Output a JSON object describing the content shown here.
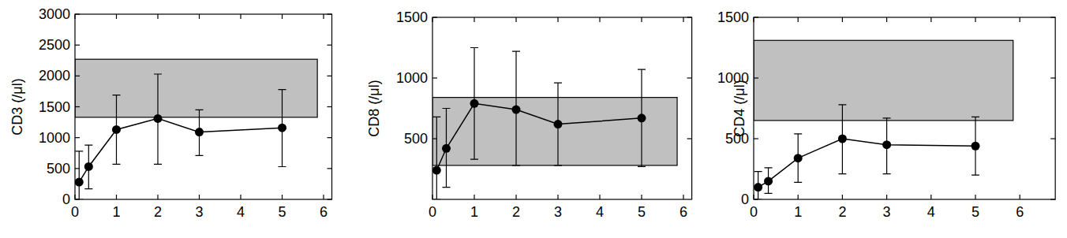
{
  "chart_data": [
    {
      "type": "line",
      "y_label": "CD3 (/μl)",
      "color": "#000000",
      "marker": "circle",
      "x": [
        0.1,
        0.33,
        1,
        2,
        3,
        5
      ],
      "values": [
        280,
        530,
        1130,
        1310,
        1090,
        1160
      ],
      "lower": [
        0,
        170,
        570,
        570,
        710,
        530
      ],
      "upper": [
        780,
        880,
        1690,
        2030,
        1450,
        1780
      ],
      "reference_range": {
        "x": [
          0,
          5.85
        ],
        "y": [
          1330,
          2270
        ]
      },
      "xlim": [
        0,
        6.2
      ],
      "xticks": [
        0,
        1,
        2,
        3,
        4,
        5,
        6
      ],
      "ylim": [
        0,
        3000
      ],
      "yticks": [
        0,
        500,
        1000,
        1500,
        2000,
        2500,
        3000
      ]
    },
    {
      "type": "line",
      "y_label": "CD8 (/μl)",
      "color": "#000000",
      "marker": "circle",
      "x": [
        0.1,
        0.33,
        1,
        2,
        3,
        5
      ],
      "values": [
        240,
        420,
        790,
        740,
        620,
        670
      ],
      "lower": [
        0,
        100,
        330,
        280,
        280,
        270
      ],
      "upper": [
        680,
        750,
        1250,
        1220,
        960,
        1070
      ],
      "reference_range": {
        "x": [
          0,
          5.85
        ],
        "y": [
          280,
          840
        ]
      },
      "xlim": [
        0,
        6.2
      ],
      "xticks": [
        0,
        1,
        2,
        3,
        4,
        5,
        6
      ],
      "ylim": [
        0,
        1500
      ],
      "yticks": [
        500,
        1000,
        1500
      ]
    },
    {
      "type": "line",
      "y_label": "CD4 (/μl)",
      "color": "#000000",
      "marker": "circle",
      "x": [
        0.1,
        0.33,
        1,
        2,
        3,
        5
      ],
      "values": [
        100,
        150,
        340,
        500,
        450,
        440
      ],
      "lower": [
        0,
        50,
        140,
        210,
        210,
        200
      ],
      "upper": [
        230,
        260,
        540,
        780,
        670,
        680
      ],
      "reference_range": {
        "x": [
          0,
          5.85
        ],
        "y": [
          650,
          1310
        ]
      },
      "xlim": [
        0,
        6.8
      ],
      "xticks": [
        0,
        1,
        2,
        3,
        4,
        5,
        6
      ],
      "ylim": [
        0,
        1500
      ],
      "yticks": [
        0,
        500,
        1000,
        1500
      ]
    }
  ]
}
